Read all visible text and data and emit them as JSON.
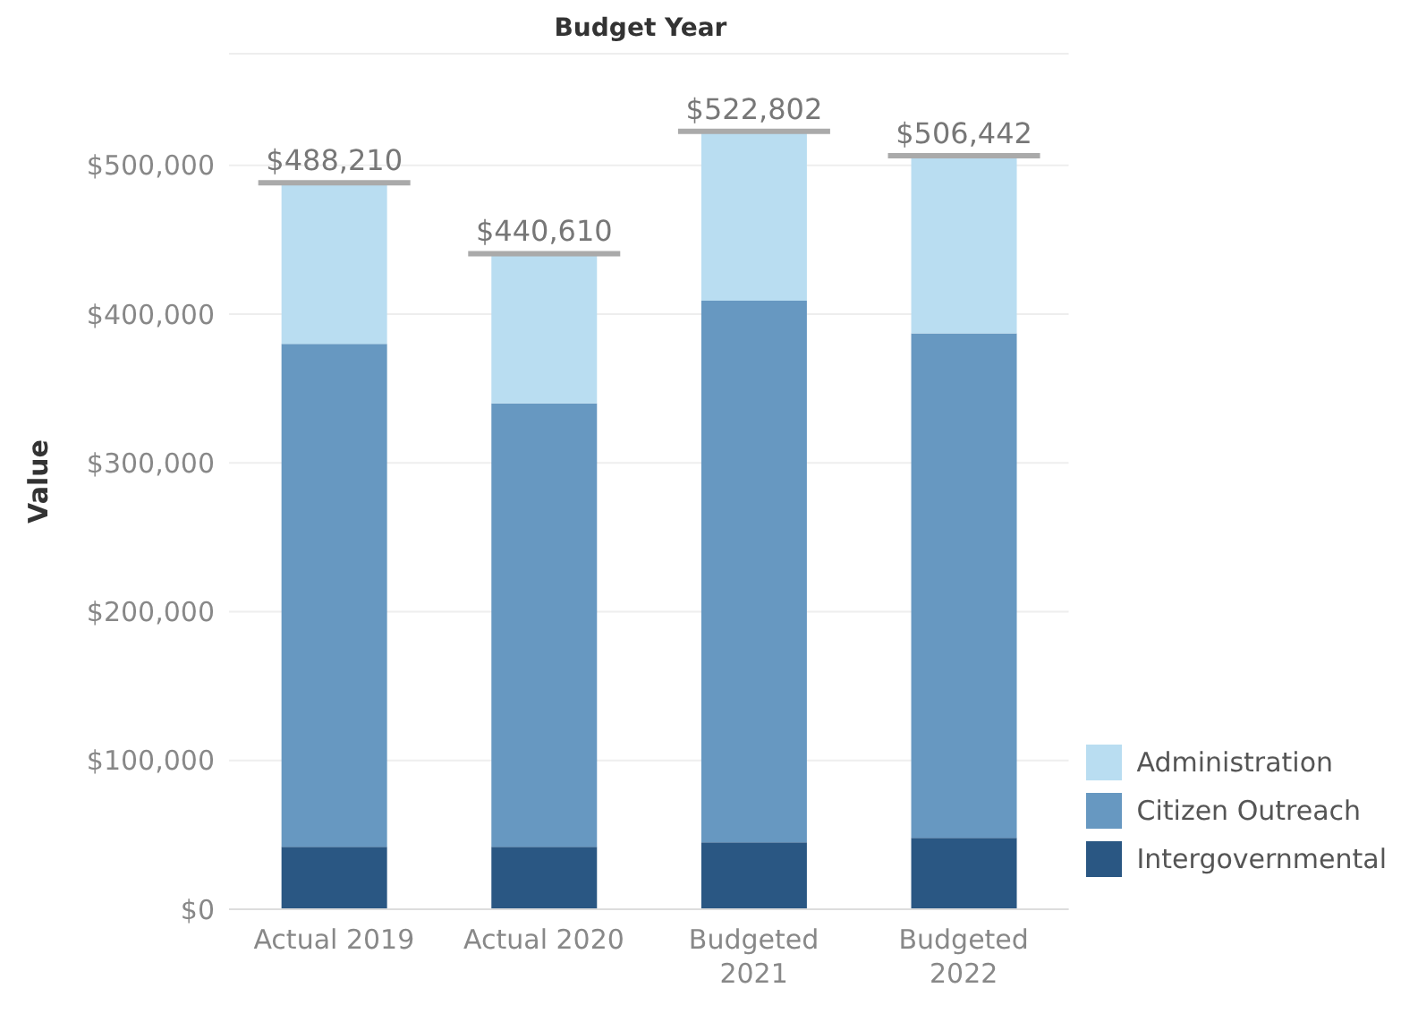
{
  "chart_data": {
    "type": "bar",
    "stacked": true,
    "xlabel": "Budget Year",
    "ylabel": "Value",
    "categories": [
      "Actual 2019",
      "Actual 2020",
      "Budgeted 2021",
      "Budgeted 2022"
    ],
    "series": [
      {
        "name": "Intergovernmental",
        "color": "#2a5783",
        "values": [
          42000,
          42000,
          45000,
          48000
        ]
      },
      {
        "name": "Citizen Outreach",
        "color": "#6798c1",
        "values": [
          338000,
          298000,
          364000,
          339000
        ]
      },
      {
        "name": "Administration",
        "color": "#b9ddf1",
        "values": [
          108210,
          100610,
          113802,
          119442
        ]
      }
    ],
    "totals": [
      "$488,210",
      "$440,610",
      "$522,802",
      "$506,442"
    ],
    "ylim": [
      0,
      575000
    ],
    "yticks": [
      {
        "value": 0,
        "label": "$0"
      },
      {
        "value": 100000,
        "label": "$100,000"
      },
      {
        "value": 200000,
        "label": "$200,000"
      },
      {
        "value": 300000,
        "label": "$300,000"
      },
      {
        "value": 400000,
        "label": "$400,000"
      },
      {
        "value": 500000,
        "label": "$500,000"
      }
    ],
    "grid": "y",
    "legend": "bottom right"
  }
}
